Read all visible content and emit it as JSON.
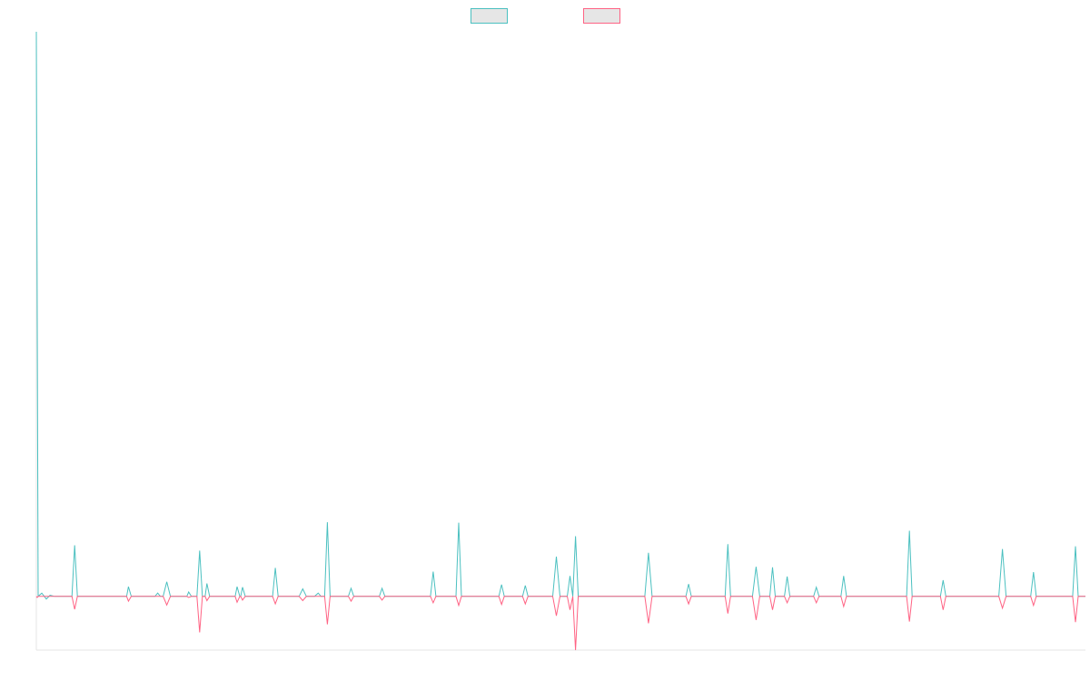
{
  "chart_data": {
    "type": "line",
    "title": "",
    "xlabel": "",
    "ylabel": "",
    "grid": false,
    "legend": "top-center",
    "x_range": [
      0,
      1150
    ],
    "ylim": [
      -100,
      1050
    ],
    "baseline": 0,
    "series": [
      {
        "color": "#4bc0c0",
        "fill": "#e6e6e6",
        "points": [
          [
            0,
            1050
          ],
          [
            2,
            0
          ],
          [
            6,
            6
          ],
          [
            11,
            -5
          ],
          [
            15,
            2
          ],
          [
            20,
            0
          ],
          [
            39,
            0
          ],
          [
            42,
            95
          ],
          [
            45,
            0
          ],
          [
            99,
            0
          ],
          [
            101,
            18
          ],
          [
            104,
            0
          ],
          [
            130,
            0
          ],
          [
            133,
            6
          ],
          [
            136,
            0
          ],
          [
            139,
            0
          ],
          [
            143,
            27
          ],
          [
            147,
            0
          ],
          [
            165,
            0
          ],
          [
            167,
            8
          ],
          [
            170,
            0
          ],
          [
            176,
            0
          ],
          [
            179,
            85
          ],
          [
            182,
            0
          ],
          [
            185,
            0
          ],
          [
            187,
            24
          ],
          [
            190,
            0
          ],
          [
            218,
            0
          ],
          [
            220,
            18
          ],
          [
            223,
            0
          ],
          [
            224,
            0
          ],
          [
            226,
            17
          ],
          [
            229,
            0
          ],
          [
            259,
            0
          ],
          [
            262,
            53
          ],
          [
            265,
            0
          ],
          [
            288,
            0
          ],
          [
            292,
            14
          ],
          [
            296,
            0
          ],
          [
            305,
            0
          ],
          [
            309,
            6
          ],
          [
            312,
            0
          ],
          [
            316,
            0
          ],
          [
            319,
            138
          ],
          [
            322,
            0
          ],
          [
            342,
            0
          ],
          [
            345,
            15
          ],
          [
            348,
            0
          ],
          [
            376,
            0
          ],
          [
            379,
            15
          ],
          [
            382,
            0
          ],
          [
            432,
            0
          ],
          [
            435,
            46
          ],
          [
            438,
            0
          ],
          [
            460,
            0
          ],
          [
            463,
            137
          ],
          [
            466,
            0
          ],
          [
            507,
            0
          ],
          [
            510,
            22
          ],
          [
            513,
            0
          ],
          [
            533,
            0
          ],
          [
            536,
            20
          ],
          [
            539,
            0
          ],
          [
            566,
            0
          ],
          [
            570,
            74
          ],
          [
            574,
            0
          ],
          [
            582,
            0
          ],
          [
            585,
            38
          ],
          [
            588,
            0
          ],
          [
            588,
            0
          ],
          [
            591,
            112
          ],
          [
            594,
            0
          ],
          [
            667,
            0
          ],
          [
            671,
            81
          ],
          [
            675,
            0
          ],
          [
            712,
            0
          ],
          [
            715,
            23
          ],
          [
            718,
            0
          ],
          [
            755,
            0
          ],
          [
            758,
            97
          ],
          [
            761,
            0
          ],
          [
            785,
            0
          ],
          [
            789,
            55
          ],
          [
            793,
            0
          ],
          [
            804,
            0
          ],
          [
            807,
            54
          ],
          [
            810,
            0
          ],
          [
            820,
            0
          ],
          [
            823,
            37
          ],
          [
            826,
            0
          ],
          [
            852,
            0
          ],
          [
            855,
            17
          ],
          [
            858,
            0
          ],
          [
            882,
            0
          ],
          [
            885,
            38
          ],
          [
            888,
            0
          ],
          [
            954,
            0
          ],
          [
            957,
            122
          ],
          [
            960,
            0
          ],
          [
            991,
            0
          ],
          [
            994,
            30
          ],
          [
            997,
            0
          ],
          [
            1055,
            0
          ],
          [
            1059,
            88
          ],
          [
            1063,
            0
          ],
          [
            1090,
            0
          ],
          [
            1093,
            45
          ],
          [
            1096,
            0
          ],
          [
            1136,
            0
          ],
          [
            1139,
            93
          ],
          [
            1142,
            0
          ],
          [
            1150,
            0
          ]
        ]
      },
      {
        "color": "#ff6384",
        "fill": "#e6e6e6",
        "points": [
          [
            0,
            0
          ],
          [
            1,
            -2
          ],
          [
            2,
            0
          ],
          [
            39,
            0
          ],
          [
            42,
            -24
          ],
          [
            45,
            0
          ],
          [
            99,
            0
          ],
          [
            101,
            -9
          ],
          [
            104,
            0
          ],
          [
            139,
            0
          ],
          [
            143,
            -16
          ],
          [
            147,
            0
          ],
          [
            165,
            0
          ],
          [
            167,
            -2
          ],
          [
            170,
            0
          ],
          [
            176,
            0
          ],
          [
            179,
            -67
          ],
          [
            182,
            0
          ],
          [
            185,
            0
          ],
          [
            187,
            -8
          ],
          [
            190,
            0
          ],
          [
            218,
            0
          ],
          [
            220,
            -11
          ],
          [
            223,
            0
          ],
          [
            224,
            0
          ],
          [
            226,
            -7
          ],
          [
            229,
            0
          ],
          [
            259,
            0
          ],
          [
            262,
            -14
          ],
          [
            265,
            0
          ],
          [
            288,
            0
          ],
          [
            292,
            -8
          ],
          [
            296,
            0
          ],
          [
            316,
            0
          ],
          [
            319,
            -52
          ],
          [
            322,
            0
          ],
          [
            342,
            0
          ],
          [
            345,
            -9
          ],
          [
            348,
            0
          ],
          [
            376,
            0
          ],
          [
            379,
            -7
          ],
          [
            382,
            0
          ],
          [
            432,
            0
          ],
          [
            435,
            -12
          ],
          [
            438,
            0
          ],
          [
            460,
            0
          ],
          [
            463,
            -17
          ],
          [
            466,
            0
          ],
          [
            507,
            0
          ],
          [
            510,
            -15
          ],
          [
            513,
            0
          ],
          [
            533,
            0
          ],
          [
            536,
            -14
          ],
          [
            539,
            0
          ],
          [
            566,
            0
          ],
          [
            570,
            -36
          ],
          [
            574,
            0
          ],
          [
            582,
            0
          ],
          [
            585,
            -25
          ],
          [
            588,
            0
          ],
          [
            588,
            0
          ],
          [
            591,
            -100
          ],
          [
            594,
            0
          ],
          [
            667,
            0
          ],
          [
            671,
            -50
          ],
          [
            675,
            0
          ],
          [
            712,
            0
          ],
          [
            715,
            -14
          ],
          [
            718,
            0
          ],
          [
            755,
            0
          ],
          [
            758,
            -32
          ],
          [
            761,
            0
          ],
          [
            785,
            0
          ],
          [
            789,
            -44
          ],
          [
            793,
            0
          ],
          [
            804,
            0
          ],
          [
            807,
            -25
          ],
          [
            810,
            0
          ],
          [
            820,
            0
          ],
          [
            823,
            -12
          ],
          [
            826,
            0
          ],
          [
            852,
            0
          ],
          [
            855,
            -12
          ],
          [
            858,
            0
          ],
          [
            882,
            0
          ],
          [
            885,
            -19
          ],
          [
            888,
            0
          ],
          [
            954,
            0
          ],
          [
            957,
            -47
          ],
          [
            960,
            0
          ],
          [
            991,
            0
          ],
          [
            994,
            -25
          ],
          [
            997,
            0
          ],
          [
            1055,
            0
          ],
          [
            1059,
            -22
          ],
          [
            1063,
            0
          ],
          [
            1090,
            0
          ],
          [
            1093,
            -17
          ],
          [
            1096,
            0
          ],
          [
            1136,
            0
          ],
          [
            1139,
            -48
          ],
          [
            1142,
            0
          ],
          [
            1150,
            0
          ]
        ]
      }
    ]
  }
}
